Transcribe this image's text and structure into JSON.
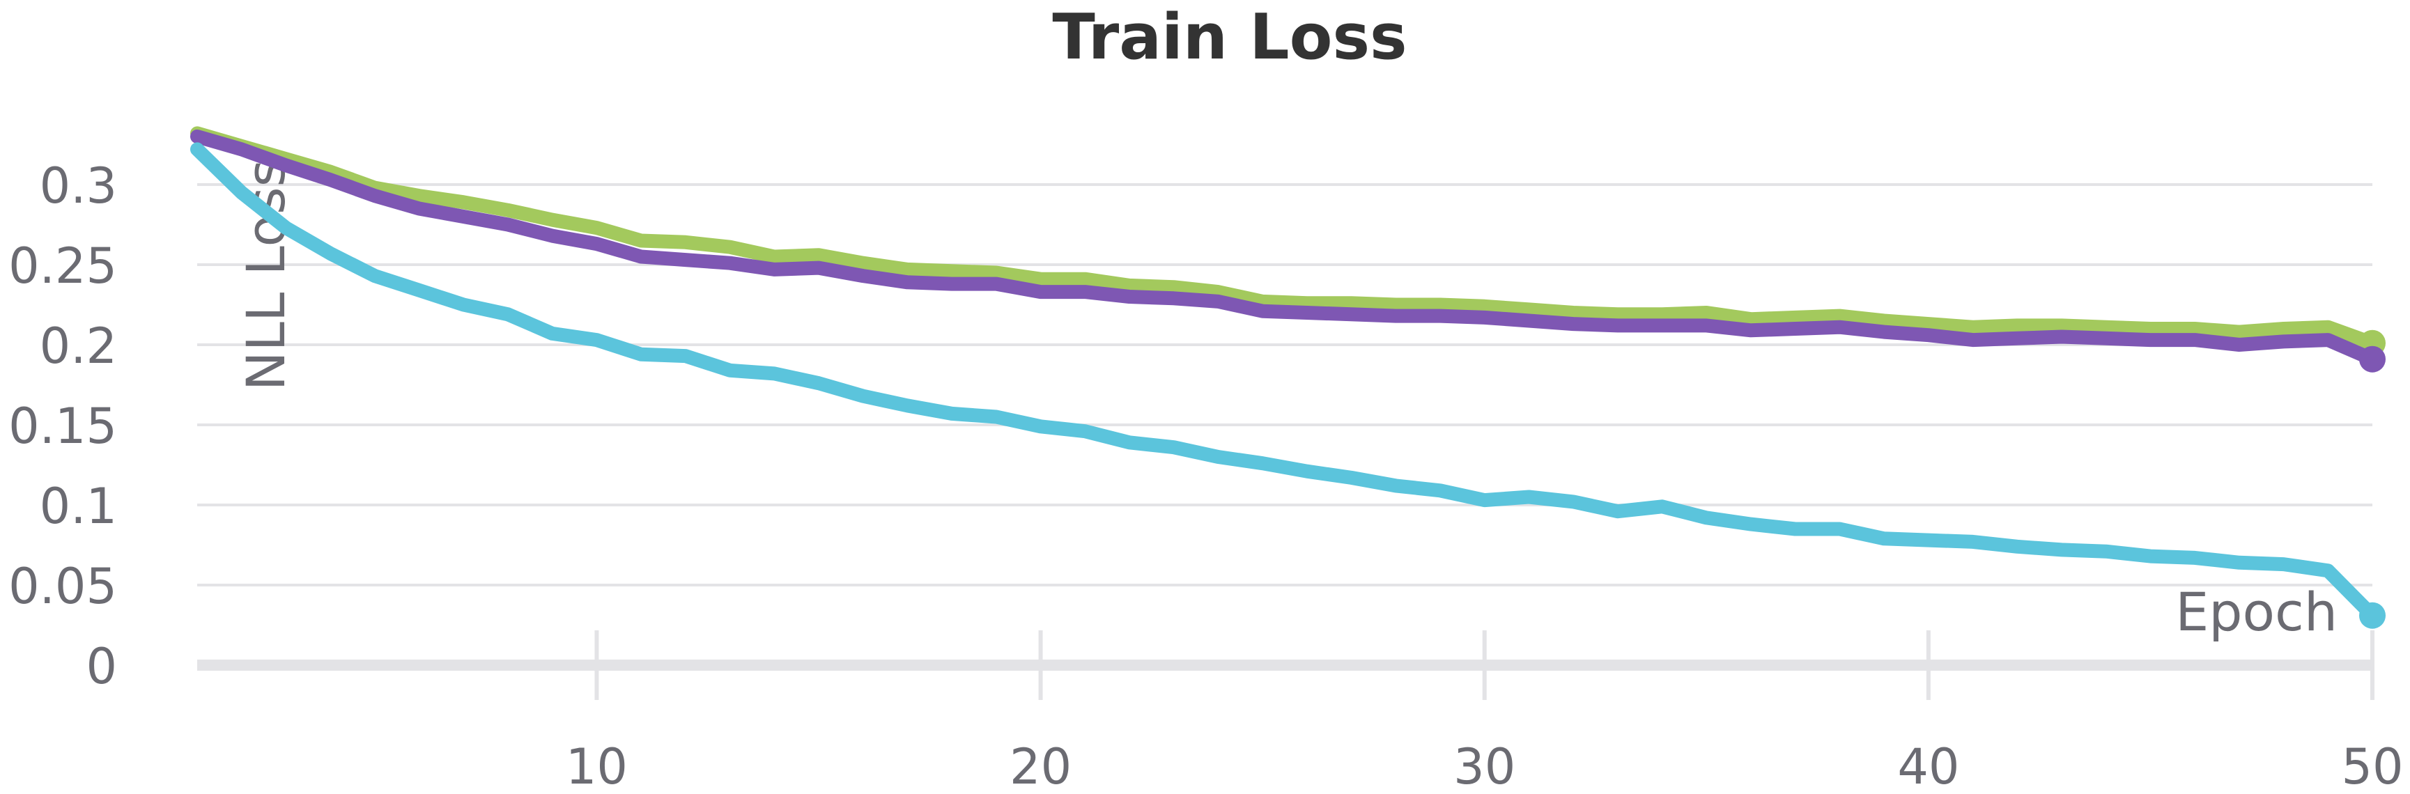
{
  "chart_data": {
    "type": "line",
    "title": "Train Loss",
    "xlabel": "Epoch",
    "ylabel": "NLL Loss",
    "xlim": [
      1,
      50
    ],
    "ylim": [
      0,
      0.33
    ],
    "xticks": [
      10,
      20,
      30,
      40,
      50
    ],
    "xtick_labels": [
      "10",
      "20",
      "30",
      "40",
      "50"
    ],
    "yticks": [
      0,
      0.05,
      0.1,
      0.15,
      0.2,
      0.25,
      0.3
    ],
    "ytick_labels": [
      "0",
      "0.05",
      "0.1",
      "0.15",
      "0.2",
      "0.25",
      "0.3"
    ],
    "grid": true,
    "x": [
      1,
      2,
      3,
      4,
      5,
      6,
      7,
      8,
      9,
      10,
      11,
      12,
      13,
      14,
      15,
      16,
      17,
      18,
      19,
      20,
      21,
      22,
      23,
      24,
      25,
      26,
      27,
      28,
      29,
      30,
      31,
      32,
      33,
      34,
      35,
      36,
      37,
      38,
      39,
      40,
      41,
      42,
      43,
      44,
      45,
      46,
      47,
      48,
      49,
      50
    ],
    "series": [
      {
        "color": "#a3c95d",
        "values": [
          0.332,
          0.324,
          0.316,
          0.308,
          0.298,
          0.293,
          0.289,
          0.284,
          0.278,
          0.273,
          0.265,
          0.264,
          0.261,
          0.255,
          0.256,
          0.251,
          0.247,
          0.246,
          0.245,
          0.241,
          0.241,
          0.237,
          0.236,
          0.233,
          0.227,
          0.226,
          0.226,
          0.225,
          0.225,
          0.224,
          0.222,
          0.22,
          0.219,
          0.219,
          0.22,
          0.216,
          0.217,
          0.218,
          0.215,
          0.213,
          0.211,
          0.212,
          0.212,
          0.211,
          0.21,
          0.21,
          0.208,
          0.21,
          0.211,
          0.201
        ]
      },
      {
        "color": "#7e57b3",
        "values": [
          0.33,
          0.322,
          0.312,
          0.303,
          0.293,
          0.285,
          0.28,
          0.275,
          0.268,
          0.263,
          0.255,
          0.253,
          0.251,
          0.247,
          0.248,
          0.243,
          0.239,
          0.238,
          0.238,
          0.233,
          0.233,
          0.23,
          0.229,
          0.227,
          0.221,
          0.22,
          0.219,
          0.218,
          0.218,
          0.217,
          0.215,
          0.213,
          0.212,
          0.212,
          0.212,
          0.209,
          0.21,
          0.211,
          0.208,
          0.206,
          0.203,
          0.204,
          0.205,
          0.204,
          0.203,
          0.203,
          0.2,
          0.202,
          0.203,
          0.191
        ]
      },
      {
        "color": "#5bc4dc",
        "values": [
          0.322,
          0.295,
          0.273,
          0.257,
          0.243,
          0.234,
          0.225,
          0.219,
          0.207,
          0.203,
          0.194,
          0.193,
          0.184,
          0.182,
          0.176,
          0.168,
          0.162,
          0.157,
          0.155,
          0.149,
          0.146,
          0.139,
          0.136,
          0.13,
          0.126,
          0.121,
          0.117,
          0.112,
          0.109,
          0.103,
          0.105,
          0.102,
          0.096,
          0.099,
          0.092,
          0.088,
          0.085,
          0.085,
          0.079,
          0.078,
          0.077,
          0.074,
          0.072,
          0.071,
          0.068,
          0.067,
          0.064,
          0.063,
          0.059,
          0.031
        ]
      }
    ]
  }
}
